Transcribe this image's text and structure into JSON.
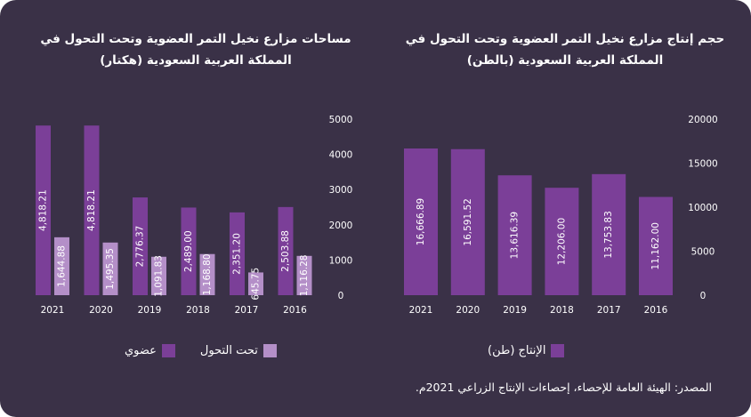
{
  "colors": {
    "background": "#3a3147",
    "organic": "#7b3f98",
    "transition": "#b48fc8",
    "production": "#7b3f98",
    "text": "#ffffff"
  },
  "chart_data": [
    {
      "type": "bar",
      "title": "حجم إنتاج مزارع نخيل التمر العضوية وتحت التحول في المملكة العربية السعودية (بالطن)",
      "categories": [
        "2021",
        "2020",
        "2019",
        "2018",
        "2017",
        "2016"
      ],
      "y_ticks": [
        "20000",
        "15000",
        "10000",
        "5000",
        "0"
      ],
      "ylim": [
        0,
        20000
      ],
      "series": [
        {
          "name": "الإنتاج (طن)",
          "values": [
            16666.89,
            16591.52,
            13616.39,
            12206.0,
            13753.83,
            11162.0
          ],
          "labels": [
            "16,666.89",
            "16,591.52",
            "13,616.39",
            "12,206.00",
            "13,753.83",
            "11,162.00"
          ]
        }
      ],
      "legend_position": "bottom"
    },
    {
      "type": "bar",
      "title": "مساحات مزارع نخيل التمر العضوية وتحت التحول في المملكة العربية السعودية (هكتار)",
      "categories": [
        "2021",
        "2020",
        "2019",
        "2018",
        "2017",
        "2016"
      ],
      "y_ticks": [
        "5000",
        "4000",
        "3000",
        "2000",
        "1000",
        "0"
      ],
      "ylim": [
        0,
        5000
      ],
      "series": [
        {
          "name": "عضوي",
          "values": [
            4818.21,
            4818.21,
            2776.37,
            2489.0,
            2351.2,
            2503.88
          ],
          "labels": [
            "4,818.21",
            "4,818.21",
            "2,776.37",
            "2,489.00",
            "2,351.20",
            "2,503.88"
          ]
        },
        {
          "name": "تحت التحول",
          "values": [
            1644.88,
            1495.35,
            1091.83,
            1168.8,
            645.75,
            1116.28
          ],
          "labels": [
            "1,644.88",
            "1,495.35",
            "1,091.83",
            "1,168.80",
            "645.75",
            "1,116.28"
          ]
        }
      ],
      "legend_position": "bottom"
    }
  ],
  "source_text": "المصدر: الهيئة العامة للإحصاء، إحصاءات الإنتاج الزراعي 2021م."
}
